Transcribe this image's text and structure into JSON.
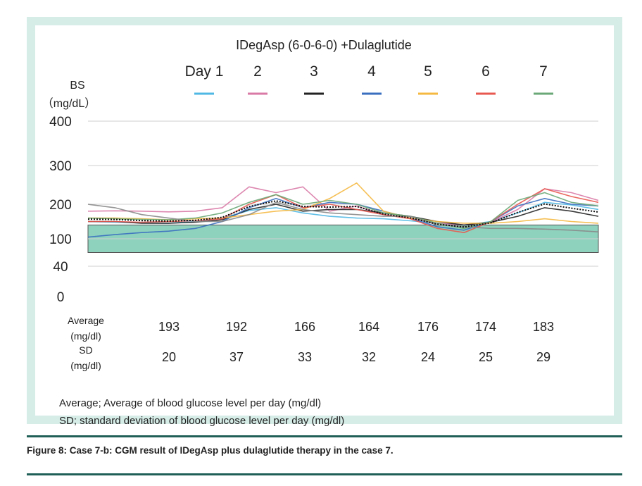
{
  "chart_data": {
    "type": "line",
    "title": "IDegAsp (6-0-6-0) +Dulaglutide",
    "ylabel_line1": "BS",
    "ylabel_line2": "（mg/dL）",
    "y_ticks": [
      400,
      300,
      200,
      100,
      40,
      0
    ],
    "y_tick_labels": [
      "400",
      "300",
      "200",
      "100",
      "40",
      "0"
    ],
    "target_range": [
      70,
      140
    ],
    "legend": [
      {
        "label": "Day 1",
        "color": "#4fb8e4"
      },
      {
        "label": "2",
        "color": "#d97aa6"
      },
      {
        "label": "3",
        "color": "#222222"
      },
      {
        "label": "4",
        "color": "#3a6fc0"
      },
      {
        "label": "5",
        "color": "#f5b942"
      },
      {
        "label": "6",
        "color": "#e8584f"
      },
      {
        "label": "7",
        "color": "#6aa877"
      }
    ],
    "series": [
      {
        "name": "Day 1",
        "color": "#4fb8e4",
        "values": [
          150,
          148,
          146,
          145,
          150,
          160,
          182,
          190,
          175,
          165,
          160,
          158,
          152,
          145,
          140,
          150,
          175,
          205,
          198,
          185
        ]
      },
      {
        "name": "2",
        "color": "#d97aa6",
        "values": [
          180,
          181,
          180,
          178,
          180,
          190,
          245,
          230,
          245,
          180,
          195,
          170,
          160,
          145,
          140,
          148,
          185,
          240,
          230,
          210
        ]
      },
      {
        "name": "3",
        "color": "#222222",
        "values": [
          150,
          150,
          145,
          145,
          148,
          155,
          185,
          200,
          180,
          185,
          185,
          175,
          165,
          150,
          140,
          148,
          165,
          190,
          180,
          165
        ]
      },
      {
        "name": "4",
        "color": "#3a6fc0",
        "values": [
          105,
          112,
          118,
          122,
          130,
          150,
          190,
          215,
          190,
          205,
          200,
          180,
          160,
          135,
          125,
          150,
          195,
          215,
          200,
          195
        ]
      },
      {
        "name": "5",
        "color": "#f5b942",
        "values": [
          160,
          160,
          158,
          155,
          158,
          160,
          170,
          180,
          185,
          215,
          255,
          180,
          160,
          150,
          145,
          145,
          150,
          158,
          150,
          145
        ]
      },
      {
        "name": "6",
        "color": "#e8584f",
        "values": [
          150,
          150,
          148,
          150,
          152,
          158,
          200,
          225,
          190,
          200,
          185,
          170,
          158,
          130,
          118,
          150,
          200,
          240,
          220,
          205
        ]
      },
      {
        "name": "7",
        "color": "#6aa877",
        "values": [
          160,
          158,
          156,
          155,
          160,
          175,
          205,
          225,
          200,
          210,
          200,
          175,
          165,
          145,
          130,
          150,
          210,
          230,
          205,
          195
        ]
      },
      {
        "name": "gray",
        "color": "#8a8a8a",
        "values": [
          200,
          190,
          170,
          160,
          150,
          150,
          170,
          205,
          185,
          175,
          170,
          165,
          165,
          140,
          135,
          130,
          130,
          128,
          125,
          120
        ]
      }
    ],
    "average_label_line1": "Average",
    "average_label_line2": "(mg/dl)",
    "sd_label_line1": "SD",
    "sd_label_line2": "(mg/dl)",
    "averages": [
      "193",
      "192",
      "166",
      "164",
      "176",
      "174",
      "183"
    ],
    "sds": [
      "20",
      "37",
      "33",
      "32",
      "24",
      "25",
      "29"
    ]
  },
  "footnote_average": "Average;  Average of blood glucose level per day (mg/dl)",
  "footnote_sd": "SD; standard deviation of blood glucose level per day (mg/dl)",
  "caption": "Figure 8: Case 7-b: CGM result of IDegAsp plus dulaglutide therapy in the case 7."
}
